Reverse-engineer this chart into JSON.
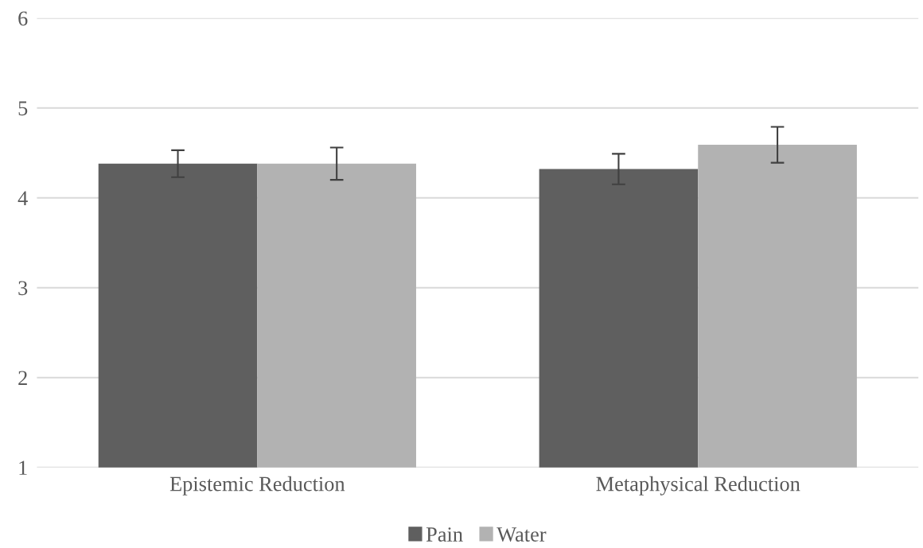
{
  "chart_data": {
    "type": "bar",
    "categories": [
      "Epistemic Reduction",
      "Metaphysical Reduction"
    ],
    "series": [
      {
        "name": "Pain",
        "color": "#5f5f5f",
        "values": [
          4.38,
          4.32
        ],
        "errors": [
          0.15,
          0.17
        ]
      },
      {
        "name": "Water",
        "color": "#b2b2b2",
        "values": [
          4.38,
          4.59
        ],
        "errors": [
          0.18,
          0.2
        ]
      }
    ],
    "ylim": [
      1,
      6
    ],
    "yticks": [
      1,
      2,
      3,
      4,
      5,
      6
    ],
    "grid": "y",
    "legend": "bottom"
  }
}
